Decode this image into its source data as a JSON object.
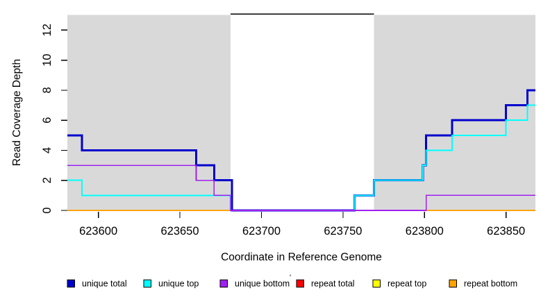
{
  "chart_data": {
    "type": "line",
    "step_style": "step-after",
    "title": "",
    "xlabel": "Coordinate in Reference Genome",
    "ylabel": "Read Coverage Depth",
    "xlim": [
      623581,
      623868
    ],
    "ylim": [
      0,
      13
    ],
    "x_ticks": [
      623600,
      623650,
      623700,
      623750,
      623800,
      623850
    ],
    "y_ticks": [
      0,
      2,
      4,
      6,
      8,
      10,
      12
    ],
    "grid": false,
    "plot_background": "#ffffff",
    "shaded_region_color": "#d9d9d9",
    "shaded_regions": [
      {
        "name": "left-shaded-region",
        "x_start": 623581,
        "x_end": 623681
      },
      {
        "name": "right-shaded-region",
        "x_start": 623769,
        "x_end": 623868
      }
    ],
    "repeat_region_bar": {
      "x_start": 623681,
      "x_end": 623769,
      "depth": 13,
      "color": "#000000"
    },
    "series": [
      {
        "name": "repeat total",
        "color": "#ff0000",
        "width": 1.4,
        "points": [
          [
            623581,
            0
          ],
          [
            623868,
            0
          ]
        ]
      },
      {
        "name": "repeat top",
        "color": "#ffff00",
        "width": 1.4,
        "points": [
          [
            623581,
            0
          ],
          [
            623868,
            0
          ]
        ]
      },
      {
        "name": "repeat bottom",
        "color": "#ffa500",
        "width": 1.8,
        "points": [
          [
            623581,
            0
          ],
          [
            623868,
            0
          ]
        ]
      },
      {
        "name": "unique total",
        "color": "#0000cd",
        "width": 3,
        "points": [
          [
            623581,
            5
          ],
          [
            623590,
            4
          ],
          [
            623660,
            3
          ],
          [
            623671,
            2
          ],
          [
            623682,
            0
          ],
          [
            623757,
            1
          ],
          [
            623769,
            2
          ],
          [
            623799,
            3
          ],
          [
            623801,
            5
          ],
          [
            623817,
            6
          ],
          [
            623850,
            7
          ],
          [
            623863,
            8
          ],
          [
            623868,
            8
          ]
        ]
      },
      {
        "name": "unique top",
        "color": "#00ffff",
        "width": 2,
        "points": [
          [
            623581,
            2
          ],
          [
            623590,
            1
          ],
          [
            623681,
            0
          ],
          [
            623757,
            1
          ],
          [
            623769,
            2
          ],
          [
            623799,
            3
          ],
          [
            623801,
            4
          ],
          [
            623817,
            5
          ],
          [
            623850,
            6
          ],
          [
            623863,
            7
          ],
          [
            623868,
            7
          ]
        ]
      },
      {
        "name": "unique bottom",
        "color": "#a020f0",
        "width": 1.6,
        "points": [
          [
            623581,
            3
          ],
          [
            623660,
            2
          ],
          [
            623671,
            1
          ],
          [
            623681,
            0
          ],
          [
            623801,
            1
          ],
          [
            623868,
            1
          ]
        ]
      }
    ],
    "legend": {
      "position": "bottom",
      "entries": [
        {
          "label": "unique total",
          "color": "#0000cd"
        },
        {
          "label": "unique top",
          "color": "#00ffff"
        },
        {
          "label": "unique bottom",
          "color": "#a020f0"
        },
        {
          "label": "repeat total",
          "color": "#ff0000"
        },
        {
          "label": "repeat top",
          "color": "#ffff00"
        },
        {
          "label": "repeat bottom",
          "color": "#ffa500"
        }
      ],
      "stray_mark": "'"
    }
  }
}
